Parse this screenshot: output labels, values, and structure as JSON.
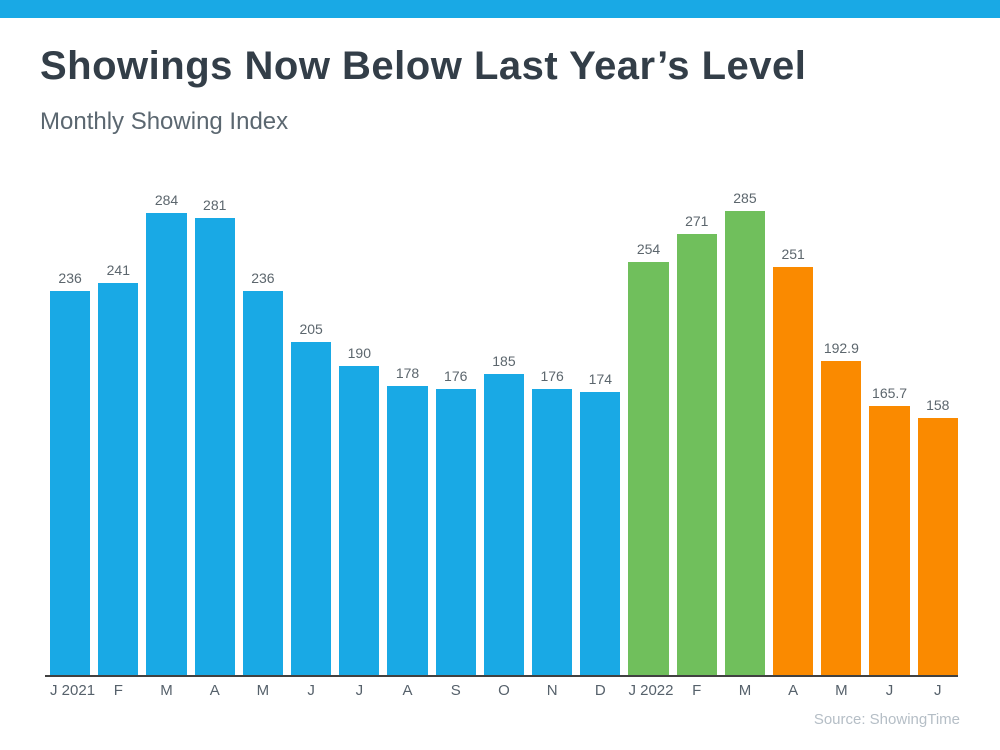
{
  "colors": {
    "accent_bar": "#19A9E5",
    "bar_blue": "#19A9E5",
    "bar_green": "#70BF5C",
    "bar_orange": "#FA8A00",
    "title_text": "#333E48",
    "subtitle_text": "#5B6770",
    "value_label_text": "#5C666D",
    "axis_label_text": "#56616B",
    "axis_line": "#414141",
    "source_text": "#B5BEC6"
  },
  "chart_data": {
    "type": "bar",
    "title": "Showings Now Below Last Year’s Level",
    "subtitle": "Monthly Showing Index",
    "source": "Source: ShowingTime",
    "categories": [
      "J 2021",
      "F",
      "M",
      "A",
      "M",
      "J",
      "J",
      "A",
      "S",
      "O",
      "N",
      "D",
      "J 2022",
      "F",
      "M",
      "A",
      "M",
      "J",
      "J"
    ],
    "values": [
      236,
      241,
      284,
      281,
      236,
      205,
      190,
      178,
      176,
      185,
      176,
      174,
      254,
      271,
      285,
      251,
      192.9,
      165.7,
      158
    ],
    "value_labels": [
      "236",
      "241",
      "284",
      "281",
      "236",
      "205",
      "190",
      "178",
      "176",
      "185",
      "176",
      "174",
      "254",
      "271",
      "285",
      "251",
      "192.9",
      "165.7",
      "158"
    ],
    "bar_colors": [
      "#19A9E5",
      "#19A9E5",
      "#19A9E5",
      "#19A9E5",
      "#19A9E5",
      "#19A9E5",
      "#19A9E5",
      "#19A9E5",
      "#19A9E5",
      "#19A9E5",
      "#19A9E5",
      "#19A9E5",
      "#70BF5C",
      "#70BF5C",
      "#70BF5C",
      "#FA8A00",
      "#FA8A00",
      "#FA8A00",
      "#FA8A00"
    ],
    "xlabel": "",
    "ylabel": "",
    "ylim": [
      0,
      285
    ],
    "grid": false,
    "legend": "none"
  }
}
